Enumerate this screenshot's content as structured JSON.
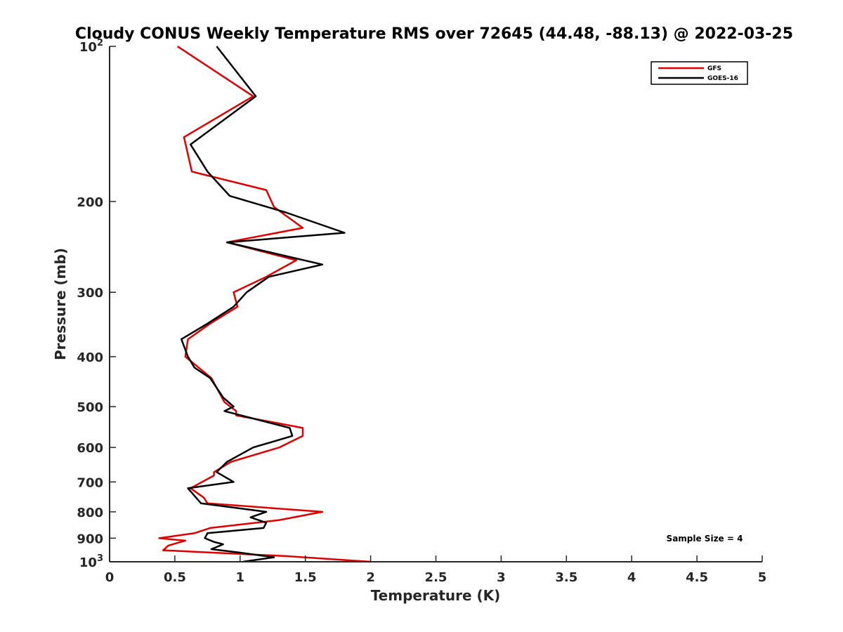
{
  "chart_data": {
    "type": "line",
    "title": "Cloudy CONUS Weekly Temperature RMS over 72645 (44.48, -88.13) @ 2022-03-25",
    "xlabel": "Temperature (K)",
    "ylabel": "Pressure (mb)",
    "xlim": [
      0,
      5
    ],
    "ylim": [
      100,
      1000
    ],
    "yscale": "log",
    "y_reversed": true,
    "grid": false,
    "legend_position": "top-right",
    "x_ticks": [
      0,
      0.5,
      1,
      1.5,
      2,
      2.5,
      3,
      3.5,
      4,
      4.5,
      5
    ],
    "x_tick_labels": [
      "0",
      "0.5",
      "1",
      "1.5",
      "2",
      "2.5",
      "3",
      "3.5",
      "4",
      "4.5",
      "5"
    ],
    "y_ticks": [
      100,
      200,
      300,
      400,
      500,
      600,
      700,
      800,
      900,
      1000
    ],
    "y_tick_labels": [
      {
        "base": "10",
        "exp": "2"
      },
      {
        "base": "200",
        "exp": ""
      },
      {
        "base": "300",
        "exp": ""
      },
      {
        "base": "400",
        "exp": ""
      },
      {
        "base": "500",
        "exp": ""
      },
      {
        "base": "600",
        "exp": ""
      },
      {
        "base": "700",
        "exp": ""
      },
      {
        "base": "800",
        "exp": ""
      },
      {
        "base": "900",
        "exp": ""
      },
      {
        "base": "10",
        "exp": "3"
      }
    ],
    "series": [
      {
        "name": "GFS",
        "color": "#e00000",
        "points": [
          [
            0.52,
            100
          ],
          [
            1.1,
            125
          ],
          [
            0.57,
            150
          ],
          [
            0.63,
            175
          ],
          [
            1.2,
            190
          ],
          [
            1.26,
            205
          ],
          [
            1.48,
            225
          ],
          [
            0.9,
            240
          ],
          [
            1.43,
            260
          ],
          [
            1.2,
            280
          ],
          [
            0.95,
            300
          ],
          [
            0.98,
            320
          ],
          [
            0.77,
            345
          ],
          [
            0.6,
            370
          ],
          [
            0.58,
            400
          ],
          [
            0.78,
            440
          ],
          [
            0.88,
            490
          ],
          [
            0.97,
            510
          ],
          [
            0.97,
            520
          ],
          [
            1.48,
            550
          ],
          [
            1.48,
            570
          ],
          [
            1.3,
            600
          ],
          [
            0.93,
            640
          ],
          [
            0.8,
            670
          ],
          [
            0.8,
            680
          ],
          [
            0.62,
            720
          ],
          [
            0.72,
            750
          ],
          [
            0.75,
            770
          ],
          [
            1.63,
            800
          ],
          [
            1.3,
            830
          ],
          [
            0.77,
            860
          ],
          [
            0.65,
            880
          ],
          [
            0.38,
            900
          ],
          [
            0.58,
            910
          ],
          [
            0.45,
            930
          ],
          [
            0.41,
            950
          ],
          [
            1.35,
            975
          ],
          [
            2.0,
            1000
          ]
        ]
      },
      {
        "name": "GOES-16",
        "color": "#000000",
        "points": [
          [
            0.82,
            100
          ],
          [
            1.12,
            125
          ],
          [
            0.62,
            155
          ],
          [
            0.75,
            175
          ],
          [
            0.92,
            195
          ],
          [
            1.35,
            210
          ],
          [
            1.8,
            230
          ],
          [
            0.9,
            240
          ],
          [
            1.63,
            265
          ],
          [
            1.22,
            280
          ],
          [
            1.05,
            300
          ],
          [
            0.95,
            320
          ],
          [
            0.75,
            345
          ],
          [
            0.55,
            370
          ],
          [
            0.6,
            400
          ],
          [
            0.65,
            420
          ],
          [
            0.77,
            440
          ],
          [
            0.87,
            480
          ],
          [
            0.95,
            500
          ],
          [
            0.88,
            510
          ],
          [
            1.38,
            550
          ],
          [
            1.4,
            570
          ],
          [
            1.1,
            600
          ],
          [
            0.9,
            640
          ],
          [
            0.82,
            670
          ],
          [
            0.95,
            700
          ],
          [
            0.6,
            720
          ],
          [
            0.7,
            770
          ],
          [
            1.2,
            800
          ],
          [
            1.08,
            820
          ],
          [
            1.2,
            840
          ],
          [
            1.18,
            860
          ],
          [
            0.75,
            880
          ],
          [
            0.73,
            900
          ],
          [
            0.8,
            915
          ],
          [
            0.87,
            925
          ],
          [
            0.78,
            945
          ],
          [
            1.0,
            960
          ],
          [
            1.26,
            980
          ],
          [
            1.02,
            1000
          ]
        ]
      }
    ],
    "annotation": "Sample Size = 4"
  }
}
